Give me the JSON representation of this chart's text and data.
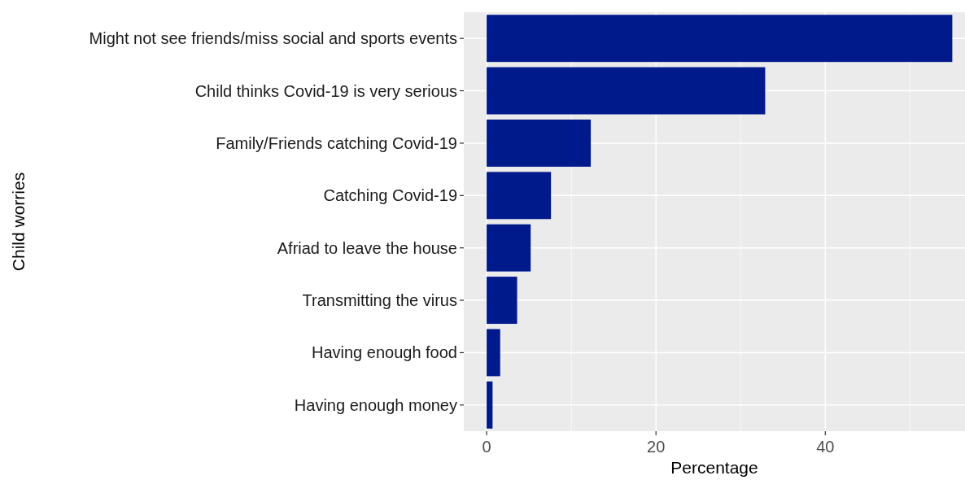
{
  "chart_data": {
    "type": "bar",
    "orientation": "horizontal",
    "xlabel": "Percentage",
    "ylabel": "Child worries",
    "categories": [
      "Might not see friends/miss social and sports events",
      "Child thinks Covid-19 is very serious",
      "Family/Friends catching Covid-19",
      "Catching Covid-19",
      "Afriad to leave the house",
      "Transmitting the virus",
      "Having enough food",
      "Having enough money"
    ],
    "values": [
      55.0,
      32.9,
      12.3,
      7.6,
      5.2,
      3.6,
      1.6,
      0.7
    ],
    "color": "#001a8c",
    "xlim": [
      -2.7,
      56.5
    ],
    "xticks": [
      0,
      20,
      40
    ],
    "grid": true
  }
}
